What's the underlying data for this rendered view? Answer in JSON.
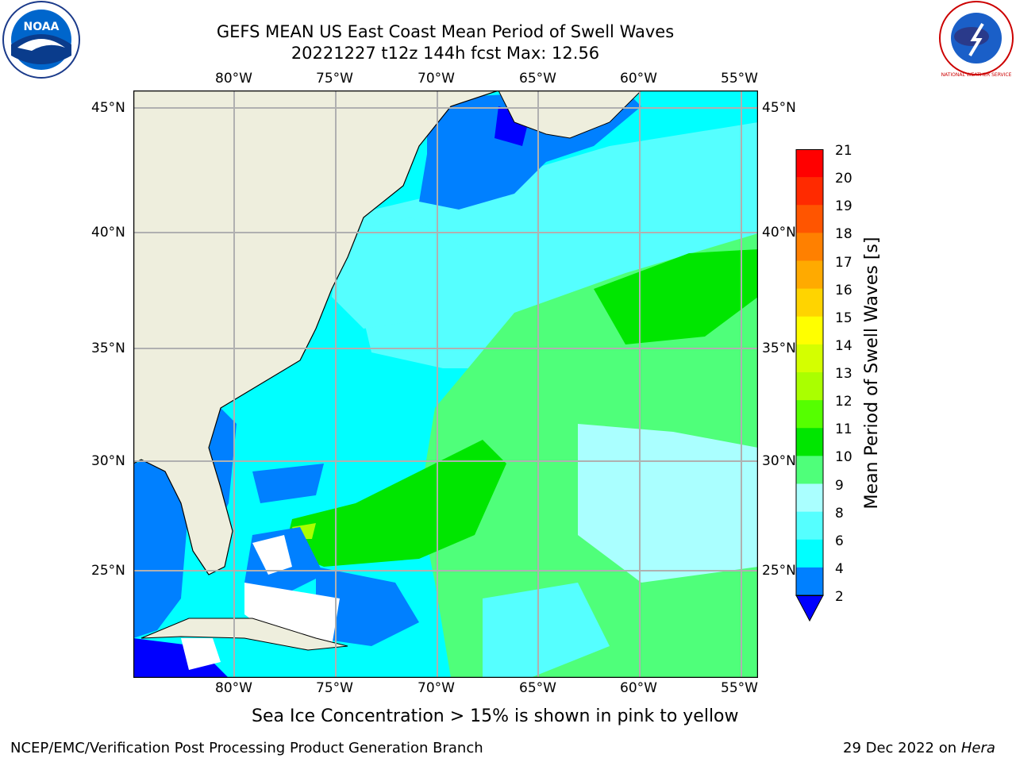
{
  "header": {
    "title_line1": "GEFS MEAN US East Coast Mean Period of Swell Waves",
    "title_line2": "20221227 t12z 144h fcst   Max: 12.56"
  },
  "logos": {
    "left": "NOAA",
    "right": "NATIONAL WEATHER SERVICE"
  },
  "map": {
    "lon_labels": [
      "80°W",
      "75°W",
      "70°W",
      "65°W",
      "60°W",
      "55°W"
    ],
    "lat_labels": [
      "45°N",
      "40°N",
      "35°N",
      "30°N",
      "25°N"
    ],
    "colors": {
      "land": "#eeeedd",
      "grid": "#b0b0b0"
    }
  },
  "colorbar": {
    "label": "Mean Period of Swell Waves [s]",
    "ticks": [
      "21",
      "20",
      "19",
      "18",
      "17",
      "16",
      "15",
      "14",
      "13",
      "12",
      "11",
      "10",
      "9",
      "8",
      "6",
      "4",
      "2"
    ],
    "colors": [
      "#ff0000",
      "#ff2a00",
      "#ff5500",
      "#ff8000",
      "#ffaa00",
      "#ffd400",
      "#ffff00",
      "#d4ff00",
      "#aaff00",
      "#55ff00",
      "#00e600",
      "#4fff7a",
      "#aaffff",
      "#55ffff",
      "#00ffff",
      "#0080ff",
      "#0000ff"
    ]
  },
  "note": "Sea Ice Concentration > 15% is shown in pink to yellow",
  "footer": {
    "left": "NCEP/EMC/Verification Post Processing Product Generation Branch",
    "right_prefix": "29 Dec 2022 on ",
    "right_host": "Hera"
  }
}
